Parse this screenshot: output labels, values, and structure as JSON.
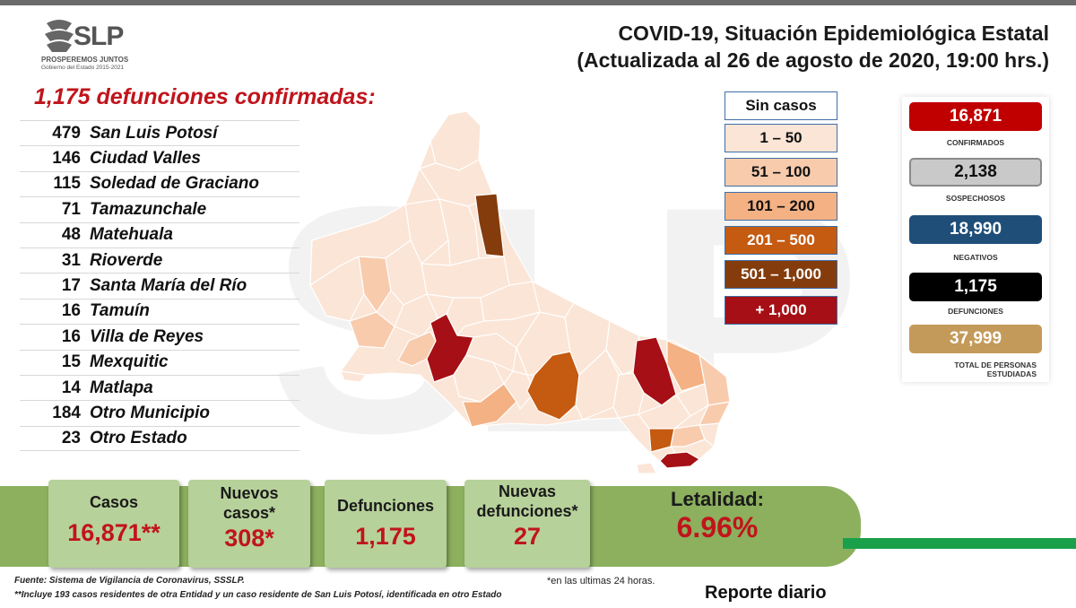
{
  "logo": {
    "text": "SLP",
    "subtitle1": "PROSPEREMOS JUNTOS",
    "subtitle2": "Gobierno del Estado 2015-2021"
  },
  "title": {
    "line1": "COVID-19, Situación Epidemiológica Estatal",
    "line2": "(Actualizada al 26 de agosto de 2020, 19:00 hrs.)"
  },
  "deaths_heading": "1,175 defunciones confirmadas:",
  "municipalities": [
    {
      "count": "479",
      "name": "San Luis Potosí"
    },
    {
      "count": "146",
      "name": "Ciudad Valles"
    },
    {
      "count": "115",
      "name": "Soledad de Graciano"
    },
    {
      "count": "71",
      "name": "Tamazunchale"
    },
    {
      "count": "48",
      "name": "Matehuala"
    },
    {
      "count": "31",
      "name": "Rioverde"
    },
    {
      "count": "17",
      "name": "Santa María del Río"
    },
    {
      "count": "16",
      "name": "Tamuín"
    },
    {
      "count": "16",
      "name": "Villa de Reyes"
    },
    {
      "count": "15",
      "name": "Mexquitic"
    },
    {
      "count": "14",
      "name": "Matlapa"
    },
    {
      "count": "184",
      "name": "Otro Municipio"
    },
    {
      "count": "23",
      "name": "Otro Estado"
    }
  ],
  "legend": [
    {
      "label": "Sin casos",
      "color": "#ffffff",
      "text_color": "#111111"
    },
    {
      "label": "1 – 50",
      "color": "#fbe5d6",
      "text_color": "#111111"
    },
    {
      "label": "51 – 100",
      "color": "#f8cbad",
      "text_color": "#111111"
    },
    {
      "label": "101 – 200",
      "color": "#f4b183",
      "text_color": "#111111"
    },
    {
      "label": "201 – 500",
      "color": "#c55a11",
      "text_color": "#ffffff"
    },
    {
      "label": "501 – 1,000",
      "color": "#843c0c",
      "text_color": "#ffffff"
    },
    {
      "label": "+ 1,000",
      "color": "#a50f15",
      "text_color": "#ffffff"
    }
  ],
  "stats": [
    {
      "value": "16,871",
      "label": "CONFIRMADOS",
      "color": "#c00000",
      "text_color": "#ffffff"
    },
    {
      "value": "2,138",
      "label": "SOSPECHOSOS",
      "color": "#c9c9c9",
      "text_color": "#111111"
    },
    {
      "value": "18,990",
      "label": "NEGATIVOS",
      "color": "#1f4e79",
      "text_color": "#ffffff"
    },
    {
      "value": "1,175",
      "label": "DEFUNCIONES",
      "color": "#000000",
      "text_color": "#ffffff"
    },
    {
      "value": "37,999",
      "label": "TOTAL DE PERSONAS ESTUDIADAS",
      "color": "#c49a5a",
      "text_color": "#ffffff"
    }
  ],
  "summary": {
    "casos": {
      "label": "Casos",
      "value": "16,871**"
    },
    "nuevos_casos": {
      "label": "Nuevos casos*",
      "value": "308*"
    },
    "defunciones": {
      "label": "Defunciones",
      "value": "1,175"
    },
    "nuevas_defunciones": {
      "label": "Nuevas defunciones*",
      "value": "27"
    },
    "letalidad": {
      "label": "Letalidad:",
      "value": "6.96%"
    }
  },
  "footer": {
    "source": "Fuente: Sistema de Vigilancia de Coronavirus, SSSLP.",
    "note_residents": "**Incluye 193 casos residentes de otra Entidad y un caso residente de San Luis Potosí, identificada en otro Estado",
    "note_24h": "*en las ultimas 24 horas.",
    "report": "Reporte diario"
  }
}
